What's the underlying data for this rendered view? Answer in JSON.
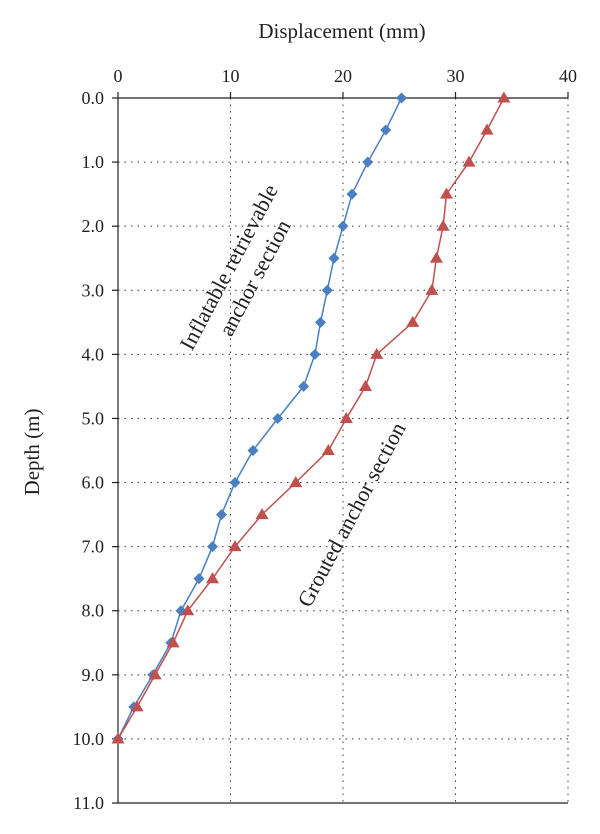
{
  "chart_data": {
    "type": "line",
    "xlabel": "Displacement (mm)",
    "ylabel": "Depth (m)",
    "xlim": [
      0,
      40
    ],
    "ylim": [
      0,
      11
    ],
    "x_axis_position": "top",
    "y_axis_inverted": true,
    "x_ticks": [
      "0",
      "10",
      "20",
      "30",
      "40"
    ],
    "y_ticks": [
      "0.0",
      "1.0",
      "2.0",
      "3.0",
      "4.0",
      "5.0",
      "6.0",
      "7.0",
      "8.0",
      "9.0",
      "10.0",
      "11.0"
    ],
    "grid": true,
    "series": [
      {
        "color": "#4a7fc1",
        "marker": "diamond",
        "points": [
          {
            "x": 25.2,
            "y": 0.0
          },
          {
            "x": 23.8,
            "y": 0.5
          },
          {
            "x": 22.2,
            "y": 1.0
          },
          {
            "x": 20.8,
            "y": 1.5
          },
          {
            "x": 20.0,
            "y": 2.0
          },
          {
            "x": 19.2,
            "y": 2.5
          },
          {
            "x": 18.6,
            "y": 3.0
          },
          {
            "x": 18.0,
            "y": 3.5
          },
          {
            "x": 17.5,
            "y": 4.0
          },
          {
            "x": 16.5,
            "y": 4.5
          },
          {
            "x": 14.2,
            "y": 5.0
          },
          {
            "x": 12.0,
            "y": 5.5
          },
          {
            "x": 10.4,
            "y": 6.0
          },
          {
            "x": 9.2,
            "y": 6.5
          },
          {
            "x": 8.4,
            "y": 7.0
          },
          {
            "x": 7.2,
            "y": 7.5
          },
          {
            "x": 5.6,
            "y": 8.0
          },
          {
            "x": 4.7,
            "y": 8.5
          },
          {
            "x": 3.1,
            "y": 9.0
          },
          {
            "x": 1.4,
            "y": 9.5
          },
          {
            "x": 0.0,
            "y": 10.0
          }
        ]
      },
      {
        "color": "#c0504d",
        "marker": "triangle",
        "points": [
          {
            "x": 34.3,
            "y": 0.0
          },
          {
            "x": 32.8,
            "y": 0.5
          },
          {
            "x": 31.2,
            "y": 1.0
          },
          {
            "x": 29.2,
            "y": 1.5
          },
          {
            "x": 28.9,
            "y": 2.0
          },
          {
            "x": 28.3,
            "y": 2.5
          },
          {
            "x": 27.9,
            "y": 3.0
          },
          {
            "x": 26.2,
            "y": 3.5
          },
          {
            "x": 23.0,
            "y": 4.0
          },
          {
            "x": 22.0,
            "y": 4.5
          },
          {
            "x": 20.3,
            "y": 5.0
          },
          {
            "x": 18.7,
            "y": 5.5
          },
          {
            "x": 15.8,
            "y": 6.0
          },
          {
            "x": 12.8,
            "y": 6.5
          },
          {
            "x": 10.4,
            "y": 7.0
          },
          {
            "x": 8.4,
            "y": 7.5
          },
          {
            "x": 6.2,
            "y": 8.0
          },
          {
            "x": 4.9,
            "y": 8.5
          },
          {
            "x": 3.3,
            "y": 9.0
          },
          {
            "x": 1.7,
            "y": 9.5
          },
          {
            "x": 0.0,
            "y": 10.0
          }
        ]
      }
    ],
    "annotations": [
      {
        "lines": [
          "Inflatable retrievable",
          "anchor section"
        ],
        "rotation_deg": -62
      },
      {
        "lines": [
          "Grouted anchor section"
        ],
        "rotation_deg": -62
      }
    ]
  }
}
